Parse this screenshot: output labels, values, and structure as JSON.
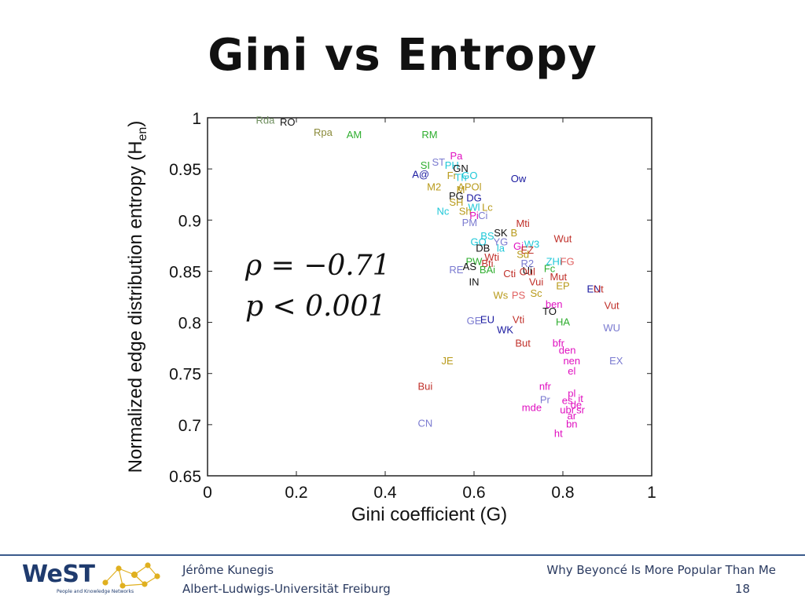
{
  "slide": {
    "title": "Gini vs Entropy",
    "stat_rho": "ρ = −0.71",
    "stat_p": "p < 0.001"
  },
  "footer": {
    "author": "Jérôme Kunegis",
    "affiliation": "Albert-Ludwigs-Universität Freiburg",
    "talk_title": "Why Beyoncé Is More Popular Than Me",
    "page_number": "18",
    "logo_text": "WeST",
    "logo_subtitle": "People and Knowledge Networks"
  },
  "chart_data": {
    "type": "scatter",
    "title": "",
    "xlabel": "Gini coefficient (G)",
    "ylabel": "Normalized edge distribution entropy (H",
    "ylabel_sub": "en",
    "ylabel_close": ")",
    "xlim": [
      0,
      1
    ],
    "ylim": [
      0.65,
      1
    ],
    "xticks": [
      "0",
      "0.2",
      "0.4",
      "0.6",
      "0.8",
      "1"
    ],
    "yticks": [
      "0.65",
      "0.7",
      "0.75",
      "0.8",
      "0.85",
      "0.9",
      "0.95",
      "1"
    ],
    "grid": false,
    "points": [
      {
        "label": "Rda",
        "x": 0.13,
        "y": 0.998,
        "color": "#6f8f5f"
      },
      {
        "label": "RO",
        "x": 0.18,
        "y": 0.996,
        "color": "#111111"
      },
      {
        "label": "Rpa",
        "x": 0.26,
        "y": 0.986,
        "color": "#8a8a3a"
      },
      {
        "label": "AM",
        "x": 0.33,
        "y": 0.984,
        "color": "#2fae2f"
      },
      {
        "label": "RM",
        "x": 0.5,
        "y": 0.984,
        "color": "#2fae2f"
      },
      {
        "label": "Pa",
        "x": 0.56,
        "y": 0.963,
        "color": "#e010c0"
      },
      {
        "label": "ST",
        "x": 0.52,
        "y": 0.957,
        "color": "#7a7ad0"
      },
      {
        "label": "SI",
        "x": 0.49,
        "y": 0.954,
        "color": "#2fae2f"
      },
      {
        "label": "PH",
        "x": 0.55,
        "y": 0.954,
        "color": "#20c8d8"
      },
      {
        "label": "GN",
        "x": 0.57,
        "y": 0.951,
        "color": "#111111"
      },
      {
        "label": "A@",
        "x": 0.48,
        "y": 0.945,
        "color": "#1a1aa0"
      },
      {
        "label": "Fr",
        "x": 0.55,
        "y": 0.944,
        "color": "#b89a1a"
      },
      {
        "label": "Th",
        "x": 0.57,
        "y": 0.942,
        "color": "#20c8d8"
      },
      {
        "label": "GO",
        "x": 0.59,
        "y": 0.944,
        "color": "#20c8d8"
      },
      {
        "label": "Ow",
        "x": 0.7,
        "y": 0.941,
        "color": "#1a1aa0"
      },
      {
        "label": "M2",
        "x": 0.51,
        "y": 0.933,
        "color": "#b89a1a"
      },
      {
        "label": "M",
        "x": 0.57,
        "y": 0.93,
        "color": "#b89a1a"
      },
      {
        "label": "APOl",
        "x": 0.59,
        "y": 0.933,
        "color": "#b89a1a"
      },
      {
        "label": "PG",
        "x": 0.56,
        "y": 0.924,
        "color": "#111111"
      },
      {
        "label": "DG",
        "x": 0.6,
        "y": 0.922,
        "color": "#1a1aa0"
      },
      {
        "label": "SH",
        "x": 0.56,
        "y": 0.918,
        "color": "#b89a1a"
      },
      {
        "label": "Wl",
        "x": 0.6,
        "y": 0.913,
        "color": "#20c8d8"
      },
      {
        "label": "Lc",
        "x": 0.63,
        "y": 0.913,
        "color": "#b89a1a"
      },
      {
        "label": "Nc",
        "x": 0.53,
        "y": 0.909,
        "color": "#20c8d8"
      },
      {
        "label": "Sh",
        "x": 0.58,
        "y": 0.909,
        "color": "#b89a1a"
      },
      {
        "label": "Pi",
        "x": 0.6,
        "y": 0.905,
        "color": "#e010c0"
      },
      {
        "label": "Ci",
        "x": 0.62,
        "y": 0.905,
        "color": "#7a7ad0"
      },
      {
        "label": "PM",
        "x": 0.59,
        "y": 0.898,
        "color": "#7a7ad0"
      },
      {
        "label": "Mti",
        "x": 0.71,
        "y": 0.897,
        "color": "#c0302a"
      },
      {
        "label": "SK",
        "x": 0.66,
        "y": 0.888,
        "color": "#111111"
      },
      {
        "label": "B",
        "x": 0.69,
        "y": 0.888,
        "color": "#b89a1a"
      },
      {
        "label": "BS",
        "x": 0.63,
        "y": 0.885,
        "color": "#20c8d8"
      },
      {
        "label": "Wut",
        "x": 0.8,
        "y": 0.882,
        "color": "#c0302a"
      },
      {
        "label": "GO",
        "x": 0.61,
        "y": 0.879,
        "color": "#20c8d8"
      },
      {
        "label": "YG",
        "x": 0.66,
        "y": 0.879,
        "color": "#7a7ad0"
      },
      {
        "label": "W3",
        "x": 0.73,
        "y": 0.877,
        "color": "#20c8d8"
      },
      {
        "label": "DB",
        "x": 0.62,
        "y": 0.873,
        "color": "#111111"
      },
      {
        "label": "la",
        "x": 0.66,
        "y": 0.873,
        "color": "#20c8d8"
      },
      {
        "label": "Gi",
        "x": 0.7,
        "y": 0.875,
        "color": "#e010c0"
      },
      {
        "label": "EZ",
        "x": 0.72,
        "y": 0.871,
        "color": "#c0302a"
      },
      {
        "label": "Sd",
        "x": 0.71,
        "y": 0.867,
        "color": "#b89a1a"
      },
      {
        "label": "Wti",
        "x": 0.64,
        "y": 0.864,
        "color": "#c0302a"
      },
      {
        "label": "PW",
        "x": 0.6,
        "y": 0.86,
        "color": "#2fae2f"
      },
      {
        "label": "AS",
        "x": 0.59,
        "y": 0.855,
        "color": "#111111"
      },
      {
        "label": "Bti",
        "x": 0.63,
        "y": 0.858,
        "color": "#c0302a"
      },
      {
        "label": "ZHi",
        "x": 0.78,
        "y": 0.86,
        "color": "#20c8d8"
      },
      {
        "label": "FG",
        "x": 0.81,
        "y": 0.86,
        "color": "#e06060"
      },
      {
        "label": "R2",
        "x": 0.72,
        "y": 0.858,
        "color": "#7a7ad0"
      },
      {
        "label": "RE",
        "x": 0.56,
        "y": 0.852,
        "color": "#7a7ad0"
      },
      {
        "label": "BAi",
        "x": 0.63,
        "y": 0.852,
        "color": "#2fae2f"
      },
      {
        "label": "Ui",
        "x": 0.72,
        "y": 0.851,
        "color": "#111111"
      },
      {
        "label": "Oul",
        "x": 0.72,
        "y": 0.85,
        "color": "#c0302a"
      },
      {
        "label": "Cti",
        "x": 0.68,
        "y": 0.848,
        "color": "#c0302a"
      },
      {
        "label": "Fc",
        "x": 0.77,
        "y": 0.853,
        "color": "#2fae2f"
      },
      {
        "label": "Mut",
        "x": 0.79,
        "y": 0.845,
        "color": "#c0302a"
      },
      {
        "label": "IN",
        "x": 0.6,
        "y": 0.84,
        "color": "#111111"
      },
      {
        "label": "Vui",
        "x": 0.74,
        "y": 0.84,
        "color": "#c0302a"
      },
      {
        "label": "EP",
        "x": 0.8,
        "y": 0.836,
        "color": "#b89a1a"
      },
      {
        "label": "EN",
        "x": 0.87,
        "y": 0.833,
        "color": "#1a1aa0"
      },
      {
        "label": "Ut",
        "x": 0.88,
        "y": 0.833,
        "color": "#c0302a"
      },
      {
        "label": "Ws",
        "x": 0.66,
        "y": 0.827,
        "color": "#b89a1a"
      },
      {
        "label": "PS",
        "x": 0.7,
        "y": 0.827,
        "color": "#e06060"
      },
      {
        "label": "Sc",
        "x": 0.74,
        "y": 0.829,
        "color": "#b89a1a"
      },
      {
        "label": "ben",
        "x": 0.78,
        "y": 0.818,
        "color": "#e010c0"
      },
      {
        "label": "Vut",
        "x": 0.91,
        "y": 0.817,
        "color": "#c0302a"
      },
      {
        "label": "TO",
        "x": 0.77,
        "y": 0.811,
        "color": "#111111"
      },
      {
        "label": "GE",
        "x": 0.6,
        "y": 0.802,
        "color": "#7a7ad0"
      },
      {
        "label": "EU",
        "x": 0.63,
        "y": 0.803,
        "color": "#1a1aa0"
      },
      {
        "label": "Vti",
        "x": 0.7,
        "y": 0.803,
        "color": "#c0302a"
      },
      {
        "label": "HA",
        "x": 0.8,
        "y": 0.801,
        "color": "#2fae2f"
      },
      {
        "label": "WU",
        "x": 0.91,
        "y": 0.795,
        "color": "#7a7ad0"
      },
      {
        "label": "WK",
        "x": 0.67,
        "y": 0.793,
        "color": "#1a1aa0"
      },
      {
        "label": "bfr",
        "x": 0.79,
        "y": 0.78,
        "color": "#e010c0"
      },
      {
        "label": "But",
        "x": 0.71,
        "y": 0.78,
        "color": "#c0302a"
      },
      {
        "label": "den",
        "x": 0.81,
        "y": 0.773,
        "color": "#e010c0"
      },
      {
        "label": "JE",
        "x": 0.54,
        "y": 0.763,
        "color": "#b89a1a"
      },
      {
        "label": "nen",
        "x": 0.82,
        "y": 0.763,
        "color": "#e010c0"
      },
      {
        "label": "EX",
        "x": 0.92,
        "y": 0.763,
        "color": "#7a7ad0"
      },
      {
        "label": "el",
        "x": 0.82,
        "y": 0.753,
        "color": "#e010c0"
      },
      {
        "label": "Bui",
        "x": 0.49,
        "y": 0.738,
        "color": "#c0302a"
      },
      {
        "label": "nfr",
        "x": 0.76,
        "y": 0.738,
        "color": "#e010c0"
      },
      {
        "label": "pl",
        "x": 0.82,
        "y": 0.731,
        "color": "#e010c0"
      },
      {
        "label": "Pr",
        "x": 0.76,
        "y": 0.725,
        "color": "#7a7ad0"
      },
      {
        "label": "es",
        "x": 0.81,
        "y": 0.724,
        "color": "#e010c0"
      },
      {
        "label": "it",
        "x": 0.84,
        "y": 0.726,
        "color": "#e010c0"
      },
      {
        "label": "de",
        "x": 0.83,
        "y": 0.72,
        "color": "#e010c0"
      },
      {
        "label": "mde",
        "x": 0.73,
        "y": 0.717,
        "color": "#e010c0"
      },
      {
        "label": "ubr",
        "x": 0.81,
        "y": 0.715,
        "color": "#e010c0"
      },
      {
        "label": "sr",
        "x": 0.84,
        "y": 0.715,
        "color": "#e010c0"
      },
      {
        "label": "ar",
        "x": 0.82,
        "y": 0.709,
        "color": "#e010c0"
      },
      {
        "label": "CN",
        "x": 0.49,
        "y": 0.702,
        "color": "#7a7ad0"
      },
      {
        "label": "bn",
        "x": 0.82,
        "y": 0.701,
        "color": "#e010c0"
      },
      {
        "label": "ht",
        "x": 0.79,
        "y": 0.692,
        "color": "#e010c0"
      }
    ]
  }
}
